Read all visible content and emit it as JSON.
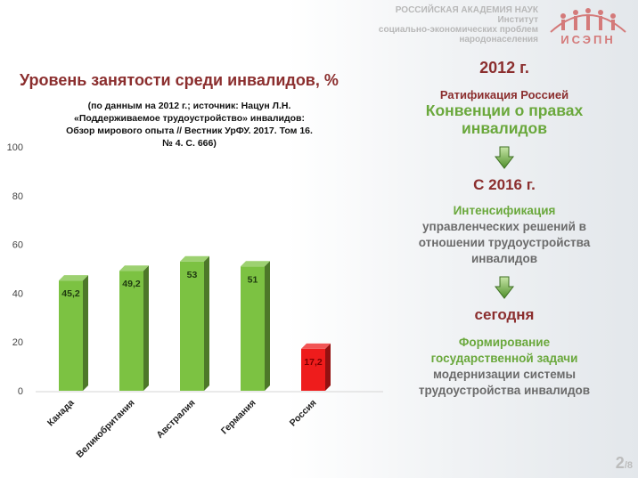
{
  "header": {
    "org_line1": "РОССИЙСКАЯ АКАДЕМИЯ НАУК",
    "org_line2": "Институт",
    "org_line3": "социально-экономических проблем",
    "org_line4": "народонаселения",
    "logo_text": "ИСЭПН"
  },
  "chart_data": {
    "type": "bar",
    "title": "Уровень занятости среди инвалидов, %",
    "source_lines": [
      "(по данным на 2012 г.; источник: Нацун Л.Н.",
      "«Поддерживаемое трудоустройство» инвалидов:",
      "Обзор мирового опыта // Вестник УрФУ. 2017. Том 16.",
      "№ 4. С. 666)"
    ],
    "categories": [
      "Канада",
      "Великобритания",
      "Австралия",
      "Германия",
      "Россия"
    ],
    "values": [
      45.2,
      49.2,
      53,
      51,
      17.2
    ],
    "value_labels": [
      "45,2",
      "49,2",
      "53",
      "51",
      "17,2"
    ],
    "yticks": [
      0,
      20,
      40,
      60,
      80,
      100
    ],
    "ylim": [
      0,
      100
    ],
    "colors": {
      "default": "#7cc242",
      "highlight": "#ee1c1c"
    },
    "highlight_index": 4
  },
  "right": {
    "year1": "2012 г.",
    "ratify": "Ратификация Россией",
    "convention": "Конвенции о правах инвалидов",
    "year2": "С 2016 г.",
    "intens_word": "Интенсификация",
    "intens_rest": "управленческих решений в отношении трудоустройства инвалидов",
    "today": "сегодня",
    "form_words": "Формирование государственной задачи",
    "form_rest": "модернизации системы трудоустройства инвалидов"
  },
  "page": {
    "current": "2",
    "total": "8"
  }
}
